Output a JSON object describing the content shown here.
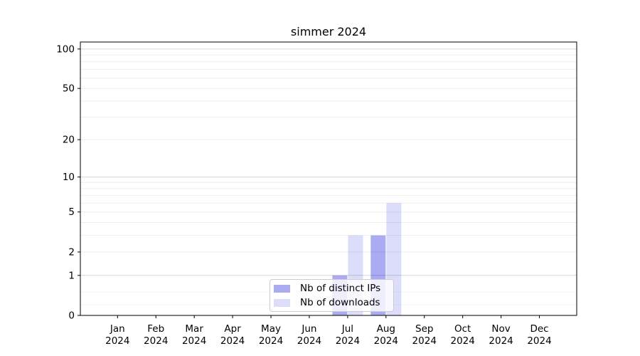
{
  "chart_data": {
    "type": "bar",
    "title": "simmer 2024",
    "categories": [
      "Jan",
      "Feb",
      "Mar",
      "Apr",
      "May",
      "Jun",
      "Jul",
      "Aug",
      "Sep",
      "Oct",
      "Nov",
      "Dec"
    ],
    "category_year": "2024",
    "series": [
      {
        "name": "Nb of distinct IPs",
        "color": "#aaabf2",
        "values": [
          0,
          0,
          0,
          0,
          0,
          0,
          1,
          3,
          0,
          0,
          0,
          0
        ]
      },
      {
        "name": "Nb of downloads",
        "color": "#dcddfa",
        "values": [
          0,
          0,
          0,
          0,
          0,
          0,
          3,
          6,
          0,
          0,
          0,
          0
        ]
      }
    ],
    "xlabel": "",
    "ylabel": "",
    "yscale": "log1p",
    "ylim": [
      0,
      113
    ],
    "yticks": [
      0,
      1,
      2,
      5,
      10,
      20,
      50,
      100
    ],
    "minor_gridlines": [
      0.2,
      0.5,
      2,
      3,
      4,
      5,
      6,
      7,
      8,
      9,
      20,
      30,
      40,
      50,
      60,
      70,
      80,
      90
    ],
    "major_gridlines": [
      1,
      10,
      100
    ],
    "grid": "horizontal",
    "legend_position": "lower center"
  }
}
